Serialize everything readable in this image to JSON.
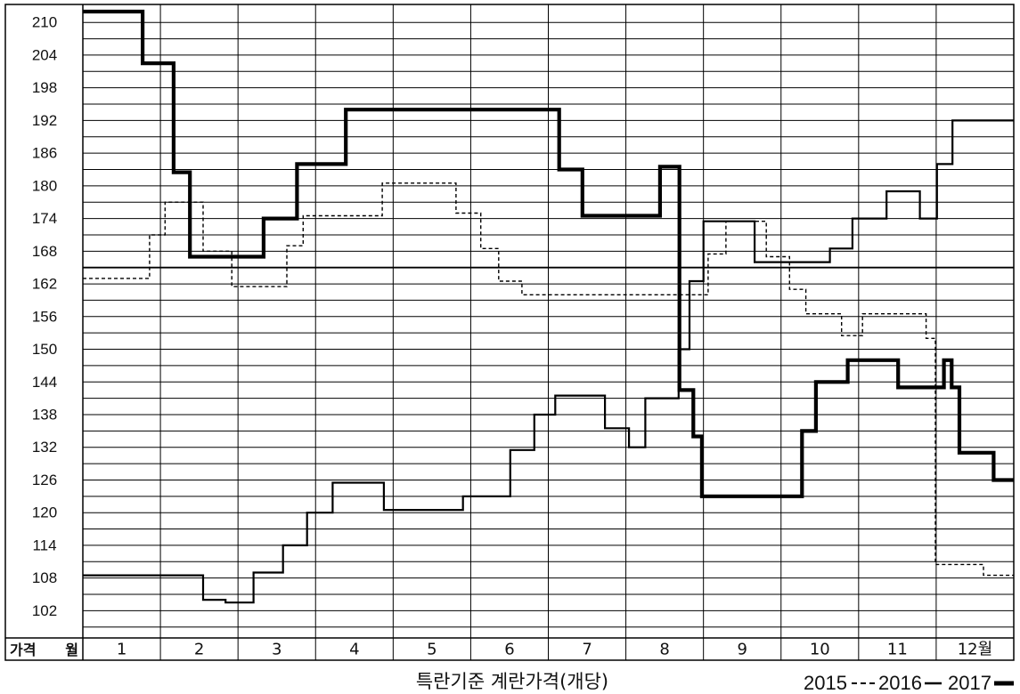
{
  "chart_data": {
    "type": "line",
    "line_shape": "step",
    "title": "특란기준 계란가격(개당)",
    "xlabel": "월",
    "ylabel": "가격",
    "x_ticks": [
      1,
      2,
      3,
      4,
      5,
      6,
      7,
      8,
      9,
      10,
      11,
      12
    ],
    "x_tick_labels": [
      "1",
      "2",
      "3",
      "4",
      "5",
      "6",
      "7",
      "8",
      "9",
      "10",
      "11",
      "12월"
    ],
    "xlim": [
      0.5,
      12.5
    ],
    "y_ticks": [
      210,
      204,
      198,
      192,
      186,
      180,
      174,
      168,
      162,
      156,
      150,
      144,
      138,
      132,
      126,
      120,
      114,
      108,
      102
    ],
    "ylim": [
      97,
      213.3
    ],
    "grid": true,
    "grid_y_step": 3,
    "reference_lines": [
      165
    ],
    "legend_position": "bottom-right",
    "series": [
      {
        "name": "2015",
        "line_style": "dashed",
        "color": "#000000",
        "x": [
          0.5,
          1.36,
          1.56,
          2.05,
          2.42,
          3.13,
          3.34,
          4.36,
          5.31,
          5.63,
          5.86,
          6.16,
          8.56,
          8.79,
          9.31,
          9.61,
          9.82,
          10.28,
          10.55,
          11.37,
          11.49,
          12.11
        ],
        "y": [
          163,
          171,
          177,
          168,
          161.5,
          169,
          174.5,
          180.5,
          175,
          168.5,
          162.5,
          160,
          167.5,
          173.5,
          167,
          161,
          156.5,
          152.5,
          156.5,
          152,
          110.5,
          108.5
        ]
      },
      {
        "name": "2016",
        "line_style": "solid-thin",
        "color": "#000000",
        "x": [
          0.5,
          2.05,
          2.34,
          2.7,
          3.08,
          3.39,
          3.72,
          4.38,
          5.4,
          6.01,
          6.32,
          6.59,
          7.23,
          7.54,
          7.75,
          8.18,
          8.32,
          8.5,
          9.16,
          10.13,
          10.42,
          10.86,
          11.29,
          11.51,
          11.71
        ],
        "y": [
          108.5,
          104,
          103.5,
          109,
          114,
          120,
          125.5,
          120.5,
          123,
          131.5,
          138,
          141.5,
          135.5,
          132,
          141,
          150,
          162.5,
          173.5,
          166,
          168.5,
          174,
          179,
          174,
          184,
          192
        ]
      },
      {
        "name": "2017",
        "line_style": "solid-thick",
        "color": "#000000",
        "x": [
          0.5,
          1.27,
          1.67,
          1.88,
          2.83,
          3.26,
          3.89,
          6.64,
          6.94,
          7.94,
          8.19,
          8.37,
          8.48,
          9.77,
          9.95,
          10.36,
          11.01,
          11.6,
          11.7,
          11.8,
          12.24
        ],
        "y": [
          212,
          202.5,
          182.5,
          167,
          174,
          184,
          194,
          183,
          174.5,
          183.5,
          142.5,
          134,
          123,
          135,
          144,
          148,
          143,
          148,
          143,
          131,
          126
        ]
      }
    ]
  }
}
